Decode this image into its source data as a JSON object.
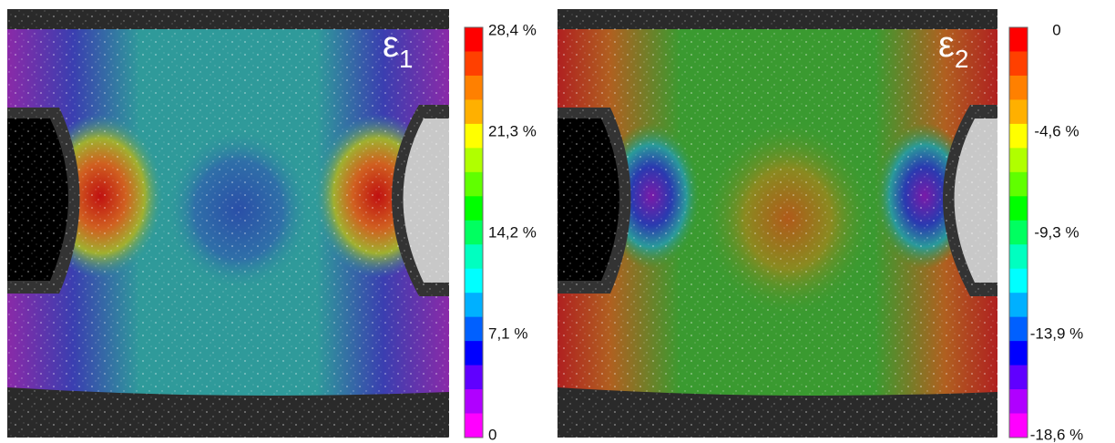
{
  "panels": [
    {
      "symbol": "ε",
      "subscript": "1",
      "colorbar": {
        "labels": [
          "28,4 %",
          "21,3 %",
          "14,2 %",
          "7,1 %",
          "0"
        ]
      }
    },
    {
      "symbol": "ε",
      "subscript": "2",
      "colorbar": {
        "labels": [
          "0",
          "-4,6 %",
          "-9,3 %",
          "-13,9 %",
          "-18,6 %"
        ]
      }
    }
  ]
}
